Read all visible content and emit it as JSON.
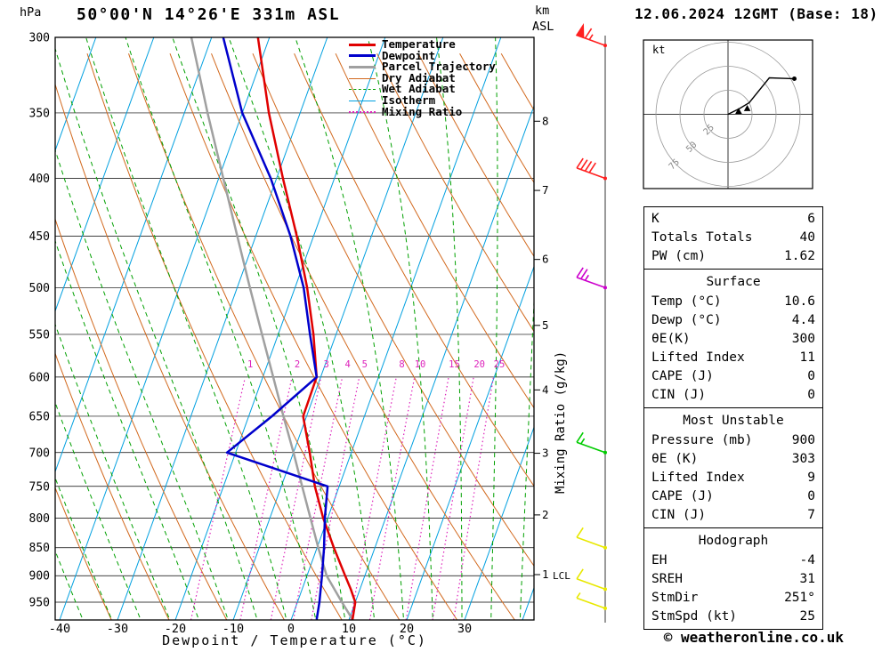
{
  "header": {
    "station": "50°00'N 14°26'E 331m ASL",
    "datetime": "12.06.2024 12GMT (Base: 18)"
  },
  "axes": {
    "pressure_unit": "hPa",
    "km_label": "km",
    "asl_label": "ASL",
    "xlabel": "Dewpoint / Temperature (°C)",
    "right_axis_label": "Mixing Ratio (g/kg)",
    "pressure_ticks": [
      300,
      350,
      400,
      450,
      500,
      550,
      600,
      650,
      700,
      750,
      800,
      850,
      900,
      950
    ],
    "temp_ticks": [
      -40,
      -30,
      -20,
      -10,
      0,
      10,
      20,
      30
    ],
    "km_ticks": [
      {
        "km": 8,
        "p": 356
      },
      {
        "km": 7,
        "p": 410
      },
      {
        "km": 6,
        "p": 472
      },
      {
        "km": 5,
        "p": 540
      },
      {
        "km": 4,
        "p": 616
      },
      {
        "km": 3,
        "p": 701
      },
      {
        "km": 2,
        "p": 795
      },
      {
        "km": 1,
        "p": 898
      }
    ],
    "lcl_label": "LCL",
    "lcl_pressure": 900
  },
  "legend": [
    {
      "label": "Temperature",
      "color": "#e00000",
      "width": 3,
      "dash": "none"
    },
    {
      "label": "Dewpoint",
      "color": "#0000cc",
      "width": 3,
      "dash": "none"
    },
    {
      "label": "Parcel Trajectory",
      "color": "#a0a0a0",
      "width": 3,
      "dash": "none"
    },
    {
      "label": "Dry Adiabat",
      "color": "#d2691e",
      "width": 1.5,
      "dash": "none"
    },
    {
      "label": "Wet Adiabat",
      "color": "#00a000",
      "width": 1.5,
      "dash": "dashed"
    },
    {
      "label": "Isotherm",
      "color": "#00a0e0",
      "width": 1.5,
      "dash": "none"
    },
    {
      "label": "Mixing Ratio",
      "color": "#dd22bb",
      "width": 2,
      "dash": "dotted"
    }
  ],
  "chart_data": {
    "type": "line",
    "subtype": "skew-t-log-p-sounding",
    "pressure_range_hpa": [
      300,
      984
    ],
    "temp_axis_range_c": [
      -40,
      40
    ],
    "isotherm_step_c": 10,
    "dry_adiabat_step_c": 10,
    "wet_adiabat_step_c": 5,
    "mixing_ratio_lines_gkg": [
      1,
      2,
      3,
      4,
      5,
      8,
      10,
      15,
      20,
      25
    ],
    "temperature_profile": [
      [
        984,
        10.6
      ],
      [
        950,
        10.0
      ],
      [
        925,
        8.4
      ],
      [
        900,
        6.6
      ],
      [
        850,
        2.9
      ],
      [
        800,
        -0.8
      ],
      [
        750,
        -4.2
      ],
      [
        700,
        -7.2
      ],
      [
        650,
        -10.6
      ],
      [
        600,
        -10.7
      ],
      [
        550,
        -13.9
      ],
      [
        500,
        -17.9
      ],
      [
        450,
        -22.9
      ],
      [
        400,
        -28.9
      ],
      [
        350,
        -35.4
      ],
      [
        300,
        -42.0
      ]
    ],
    "dewpoint_profile": [
      [
        984,
        4.4
      ],
      [
        950,
        3.8
      ],
      [
        900,
        2.6
      ],
      [
        850,
        1.2
      ],
      [
        800,
        -0.5
      ],
      [
        750,
        -2.0
      ],
      [
        700,
        -21.5
      ],
      [
        650,
        -16.0
      ],
      [
        600,
        -10.7
      ],
      [
        550,
        -14.5
      ],
      [
        500,
        -18.5
      ],
      [
        450,
        -24.0
      ],
      [
        400,
        -31.0
      ],
      [
        350,
        -40.0
      ],
      [
        300,
        -48.0
      ]
    ],
    "parcel_profile": [
      [
        984,
        10.6
      ],
      [
        950,
        7.7
      ],
      [
        900,
        3.4
      ],
      [
        850,
        0.2
      ],
      [
        800,
        -3.0
      ],
      [
        750,
        -6.4
      ],
      [
        700,
        -10.0
      ],
      [
        650,
        -14.0
      ],
      [
        600,
        -18.2
      ],
      [
        550,
        -22.8
      ],
      [
        500,
        -27.8
      ],
      [
        450,
        -33.2
      ],
      [
        400,
        -39.2
      ],
      [
        350,
        -46.0
      ],
      [
        300,
        -53.5
      ]
    ],
    "colors": {
      "temperature": "#e00000",
      "dewpoint": "#0000cc",
      "parcel": "#a0a0a0",
      "dry_adiabat": "#d2691e",
      "wet_adiabat": "#00a000",
      "isotherm": "#00a0e0",
      "mixing_ratio": "#dd22bb",
      "grid": "#000000"
    }
  },
  "wind_barbs": [
    {
      "pressure_hpa": 305,
      "speed_kt": 65,
      "color": "#ff2020"
    },
    {
      "pressure_hpa": 400,
      "speed_kt": 40,
      "color": "#ff2020"
    },
    {
      "pressure_hpa": 500,
      "speed_kt": 25,
      "color": "#cc00cc"
    },
    {
      "pressure_hpa": 700,
      "speed_kt": 15,
      "color": "#00cc00"
    },
    {
      "pressure_hpa": 850,
      "speed_kt": 10,
      "color": "#e8e800"
    },
    {
      "pressure_hpa": 925,
      "speed_kt": 10,
      "color": "#e8e800"
    },
    {
      "pressure_hpa": 962,
      "speed_kt": 5,
      "color": "#e8e800"
    }
  ],
  "hodograph": {
    "unit": "kt",
    "rings_kt": [
      25,
      50,
      75
    ],
    "trace_kt": [
      [
        0,
        0
      ],
      [
        12,
        6
      ],
      [
        22,
        12
      ],
      [
        43,
        38
      ],
      [
        69,
        37
      ]
    ],
    "storm_markers_kt": [
      [
        11,
        3
      ],
      [
        20,
        6
      ]
    ]
  },
  "table": {
    "sections": [
      {
        "title": "",
        "rows": [
          [
            "K",
            "6"
          ],
          [
            "Totals Totals",
            "40"
          ],
          [
            "PW (cm)",
            "1.62"
          ]
        ]
      },
      {
        "title": "Surface",
        "rows": [
          [
            "Temp (°C)",
            "10.6"
          ],
          [
            "Dewp (°C)",
            "4.4"
          ],
          [
            "θE(K)",
            "300"
          ],
          [
            "Lifted Index",
            "11"
          ],
          [
            "CAPE (J)",
            "0"
          ],
          [
            "CIN (J)",
            "0"
          ]
        ]
      },
      {
        "title": "Most Unstable",
        "rows": [
          [
            "Pressure (mb)",
            "900"
          ],
          [
            "θE (K)",
            "303"
          ],
          [
            "Lifted Index",
            "9"
          ],
          [
            "CAPE (J)",
            "0"
          ],
          [
            "CIN (J)",
            "7"
          ]
        ]
      },
      {
        "title": "Hodograph",
        "rows": [
          [
            "EH",
            "-4"
          ],
          [
            "SREH",
            "31"
          ],
          [
            "StmDir",
            "251°"
          ],
          [
            "StmSpd (kt)",
            "25"
          ]
        ]
      }
    ]
  },
  "footer": {
    "copyright": "© weatheronline.co.uk"
  }
}
